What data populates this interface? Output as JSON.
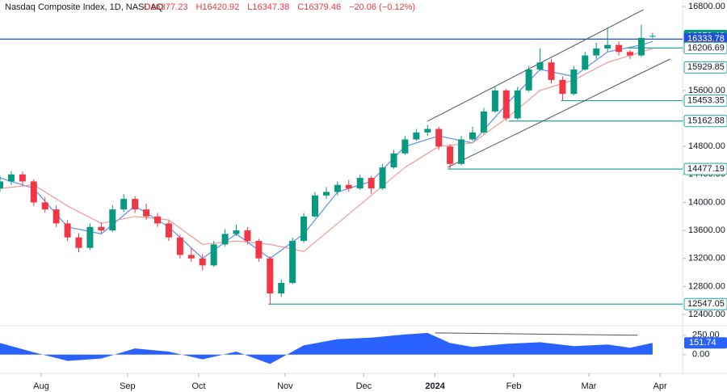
{
  "chart_data": {
    "type": "candlestick",
    "title": "Nasdaq Composite Index, 1D, NASDAQ",
    "header_values": [
      "O16377.23",
      "H16420.92",
      "L16347.38",
      "C16379.46",
      "−20.06 (−0.12%)"
    ],
    "up_color": "#089981",
    "down_color": "#f23645",
    "x": [
      0,
      3,
      6,
      9,
      12,
      15,
      18,
      21,
      24,
      27,
      30,
      33,
      36,
      39,
      42,
      45,
      48,
      51,
      54,
      57,
      60,
      63,
      66,
      69,
      72,
      75,
      78,
      81,
      84,
      87,
      90,
      93,
      96,
      99,
      102,
      105,
      108,
      111,
      114,
      117,
      120,
      123,
      126,
      129,
      132,
      135,
      138,
      141,
      144,
      147,
      150,
      153,
      156,
      159,
      162,
      165,
      168,
      171,
      174
    ],
    "ohlc": [
      [
        14200,
        14380,
        14150,
        14300
      ],
      [
        14300,
        14450,
        14250,
        14400
      ],
      [
        14400,
        14440,
        14250,
        14300
      ],
      [
        14300,
        14330,
        13950,
        14000
      ],
      [
        14000,
        14080,
        13850,
        13900
      ],
      [
        13900,
        13960,
        13650,
        13700
      ],
      [
        13700,
        13750,
        13450,
        13500
      ],
      [
        13500,
        13560,
        13290,
        13350
      ],
      [
        13350,
        13700,
        13320,
        13650
      ],
      [
        13650,
        13720,
        13550,
        13600
      ],
      [
        13600,
        13960,
        13580,
        13900
      ],
      [
        13900,
        14120,
        13860,
        14050
      ],
      [
        14050,
        14090,
        13850,
        13900
      ],
      [
        13900,
        13980,
        13750,
        13800
      ],
      [
        13800,
        13850,
        13650,
        13700
      ],
      [
        13700,
        13740,
        13450,
        13500
      ],
      [
        13500,
        13540,
        13200,
        13250
      ],
      [
        13250,
        13350,
        13150,
        13200
      ],
      [
        13200,
        13260,
        13030,
        13100
      ],
      [
        13100,
        13450,
        13080,
        13400
      ],
      [
        13400,
        13620,
        13370,
        13550
      ],
      [
        13550,
        13680,
        13520,
        13600
      ],
      [
        13600,
        13650,
        13400,
        13450
      ],
      [
        13450,
        13480,
        13150,
        13200
      ],
      [
        13200,
        13230,
        12547.05,
        12700
      ],
      [
        12700,
        12900,
        12650,
        12850
      ],
      [
        12850,
        13500,
        12830,
        13450
      ],
      [
        13450,
        13850,
        13420,
        13800
      ],
      [
        13800,
        14150,
        13780,
        14100
      ],
      [
        14100,
        14220,
        14050,
        14150
      ],
      [
        14150,
        14300,
        14100,
        14250
      ],
      [
        14250,
        14320,
        14150,
        14200
      ],
      [
        14200,
        14400,
        14180,
        14350
      ],
      [
        14350,
        14380,
        14120,
        14200
      ],
      [
        14200,
        14550,
        14180,
        14500
      ],
      [
        14500,
        14750,
        14480,
        14700
      ],
      [
        14700,
        14950,
        14680,
        14900
      ],
      [
        14900,
        15050,
        14880,
        15000
      ],
      [
        15000,
        15110,
        14950,
        15050
      ],
      [
        15050,
        15080,
        14750,
        14800
      ],
      [
        14800,
        14830,
        14477.19,
        14550
      ],
      [
        14550,
        14950,
        14530,
        14900
      ],
      [
        14900,
        15080,
        14880,
        15000
      ],
      [
        15000,
        15350,
        14980,
        15300
      ],
      [
        15300,
        15650,
        15280,
        15600
      ],
      [
        15600,
        15620,
        15162.88,
        15200
      ],
      [
        15200,
        15650,
        15180,
        15600
      ],
      [
        15600,
        15950,
        15580,
        15900
      ],
      [
        15900,
        16200,
        15880,
        16000
      ],
      [
        16000,
        16050,
        15700,
        15750
      ],
      [
        15750,
        15800,
        15453.35,
        15550
      ],
      [
        15550,
        15950,
        15530,
        15900
      ],
      [
        15900,
        16150,
        15880,
        16100
      ],
      [
        16100,
        16280,
        16050,
        16200
      ],
      [
        16200,
        16500,
        16150,
        16250
      ],
      [
        16250,
        16300,
        16100,
        16150
      ],
      [
        16150,
        16180,
        16050,
        16100
      ],
      [
        16100,
        16540,
        16080,
        16350
      ],
      [
        16377.23,
        16420.92,
        16347.38,
        16379.46
      ]
    ],
    "overlays": [
      {
        "color": "#5b8def",
        "x": [
          0,
          9,
          18,
          27,
          36,
          45,
          54,
          63,
          72,
          81,
          90,
          99,
          108,
          117,
          126,
          135,
          144,
          153,
          162,
          171,
          174
        ],
        "values": [
          14350,
          14200,
          13650,
          13550,
          13950,
          13650,
          13200,
          13550,
          13200,
          13550,
          14150,
          14300,
          14800,
          14950,
          14850,
          15400,
          15900,
          15800,
          16150,
          16250,
          16300
        ]
      },
      {
        "color": "#ef9a9a",
        "x": [
          0,
          9,
          18,
          27,
          36,
          45,
          54,
          63,
          72,
          81,
          90,
          99,
          108,
          117,
          126,
          135,
          144,
          153,
          162,
          171,
          174
        ],
        "values": [
          14200,
          14250,
          13950,
          13700,
          13800,
          13750,
          13400,
          13450,
          13400,
          13300,
          13700,
          14100,
          14500,
          14800,
          14850,
          15200,
          15600,
          15750,
          16000,
          16150,
          16200
        ]
      }
    ],
    "trendlines": [
      {
        "x": [
          114,
          171.6
        ],
        "values": [
          15160,
          16754
        ]
      },
      {
        "x": [
          119.4,
          178.7
        ],
        "values": [
          14502,
          16049
        ]
      }
    ],
    "levels": [
      {
        "value": 16379.46,
        "style": "filled",
        "color": "#089981",
        "from": null
      },
      {
        "value": 16333.78,
        "style": "filled",
        "color": "#1e4fd6",
        "from": 0
      },
      {
        "value": 16210.37,
        "style": "filled",
        "color": "#f23645",
        "from": null
      },
      {
        "value": 16206.69,
        "style": "outline",
        "color": "#26a69a",
        "from": 166.8
      },
      {
        "value": 15929.85,
        "style": "outline",
        "color": "#26a69a",
        "from": null
      },
      {
        "value": 15453.35,
        "style": "outline",
        "color": "#26a69a",
        "from": 149.6
      },
      {
        "value": 15162.88,
        "style": "outline",
        "color": "#26a69a",
        "from": 135.6
      },
      {
        "value": 14477.19,
        "style": "outline",
        "color": "#26a69a",
        "from": 119.4
      },
      {
        "value": 12547.05,
        "style": "outline",
        "color": "#26a69a",
        "from": 71.6
      }
    ],
    "xlim": [
      0,
      182
    ],
    "xticks": [
      {
        "value": 11,
        "label": "Aug"
      },
      {
        "value": 34,
        "label": "Sep"
      },
      {
        "value": 53,
        "label": "Oct"
      },
      {
        "value": 76,
        "label": "Nov"
      },
      {
        "value": 97,
        "label": "Dec"
      },
      {
        "value": 116,
        "label": "2024"
      },
      {
        "value": 137,
        "label": "Feb"
      },
      {
        "value": 157,
        "label": "Mar"
      },
      {
        "value": 176,
        "label": "Apr"
      }
    ],
    "ylim": [
      12273,
      16892
    ],
    "yticks": [
      {
        "value": 16800,
        "label": "16800.00"
      },
      {
        "value": 15600,
        "label": "15600.00"
      },
      {
        "value": 14800,
        "label": "14800.00"
      },
      {
        "value": 14400,
        "label": "14400.00"
      },
      {
        "value": 14000,
        "label": "14000.00"
      },
      {
        "value": 13600,
        "label": "13600.00"
      },
      {
        "value": 13200,
        "label": "13200.00"
      },
      {
        "value": 12800,
        "label": "12800.00"
      },
      {
        "value": 12400,
        "label": "12400.00"
      }
    ],
    "oscillator": {
      "color": "#2962ff",
      "x": [
        0,
        9,
        18,
        27,
        36,
        45,
        54,
        63,
        72,
        81,
        90,
        99,
        108,
        114,
        120,
        126,
        135,
        144,
        153,
        162,
        168,
        174
      ],
      "values": [
        150,
        30,
        -80,
        -50,
        80,
        40,
        -60,
        40,
        -120,
        120,
        200,
        220,
        260,
        280,
        150,
        100,
        140,
        160,
        110,
        130,
        90,
        151.74
      ],
      "ylim": [
        -200,
        300
      ],
      "yticks": [
        {
          "value": 250,
          "label": "250.00"
        },
        {
          "value": 0,
          "label": "0.00"
        }
      ],
      "trendline": {
        "x": [
          116,
          170
        ],
        "values": [
          280,
          250
        ]
      }
    }
  }
}
